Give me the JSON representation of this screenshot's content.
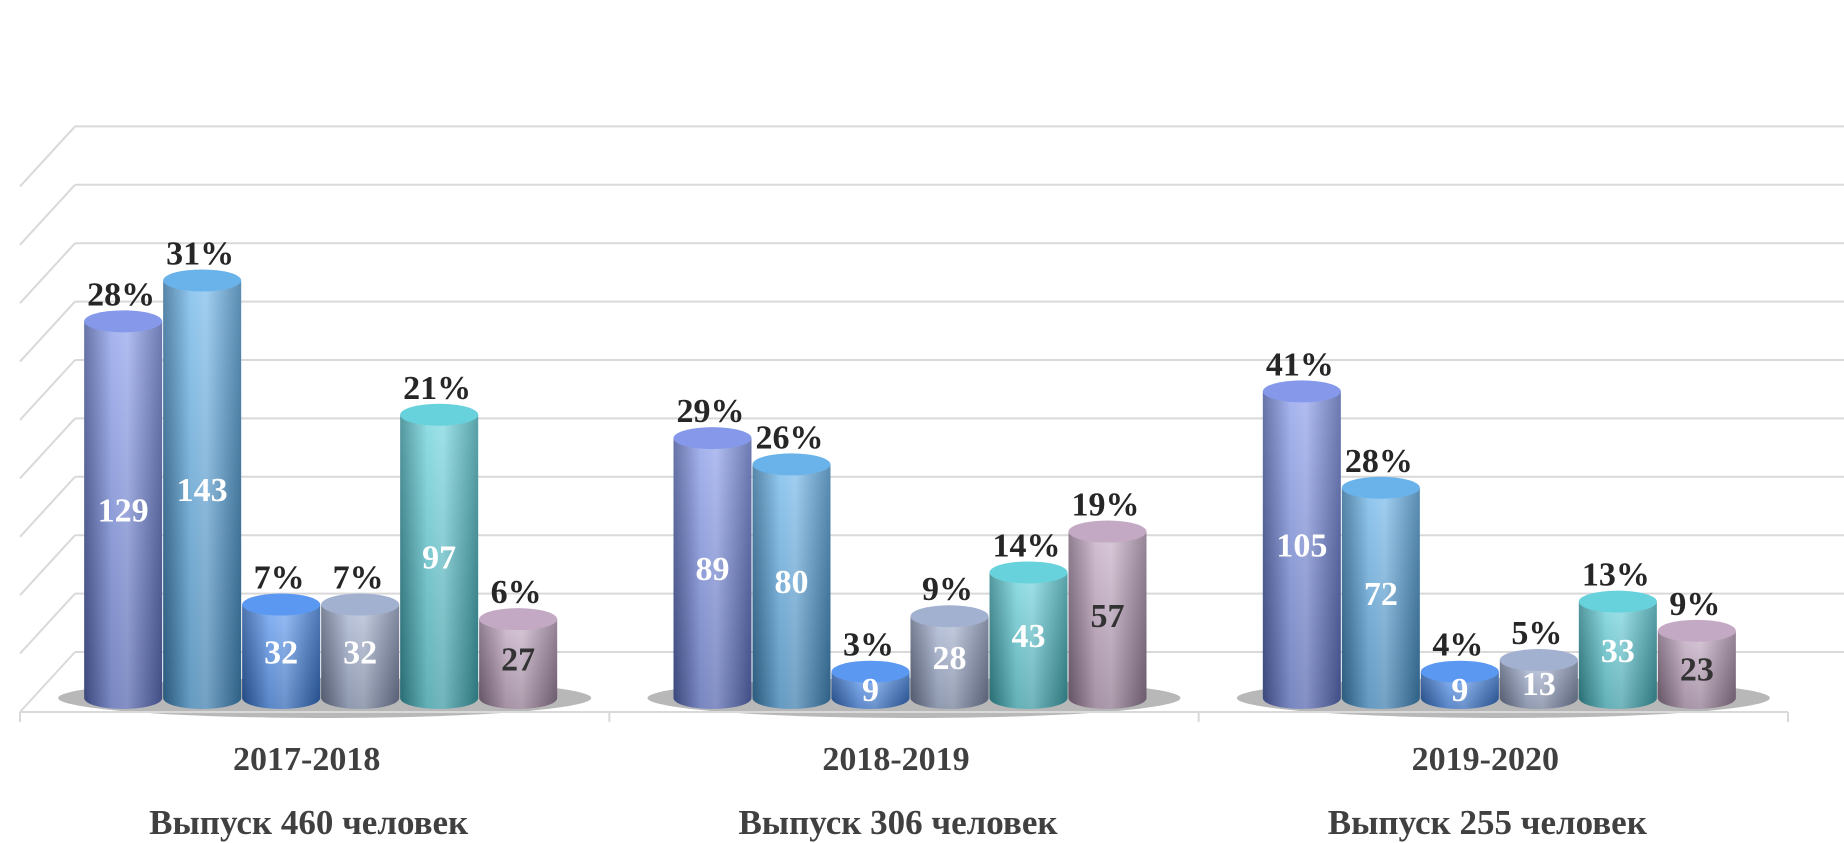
{
  "chart_data": {
    "type": "bar",
    "style": "3d-cylinder",
    "grid": true,
    "legend": "none",
    "ylim": [
      0,
      190
    ],
    "categories": [
      "2017-2018",
      "2018-2019",
      "2019-2020"
    ],
    "subtitles": [
      "Выпуск 460 человек",
      "Выпуск 306 человек",
      "Выпуск 255 человек"
    ],
    "series_colors": [
      "#6f86e6",
      "#4fa6e6",
      "#3d86f0",
      "#93a3c8",
      "#4cc9d6",
      "#b89ab8"
    ],
    "groups": [
      {
        "values": [
          129,
          143,
          32,
          32,
          97,
          27
        ],
        "percents": [
          "28%",
          "31%",
          "7%",
          "7%",
          "21%",
          "6%"
        ]
      },
      {
        "values": [
          89,
          80,
          9,
          28,
          43,
          57
        ],
        "percents": [
          "29%",
          "26%",
          "3%",
          "9%",
          "14%",
          "19%"
        ]
      },
      {
        "values": [
          105,
          72,
          9,
          13,
          33,
          23
        ],
        "percents": [
          "41%",
          "28%",
          "4%",
          "5%",
          "13%",
          "9%"
        ]
      }
    ]
  }
}
